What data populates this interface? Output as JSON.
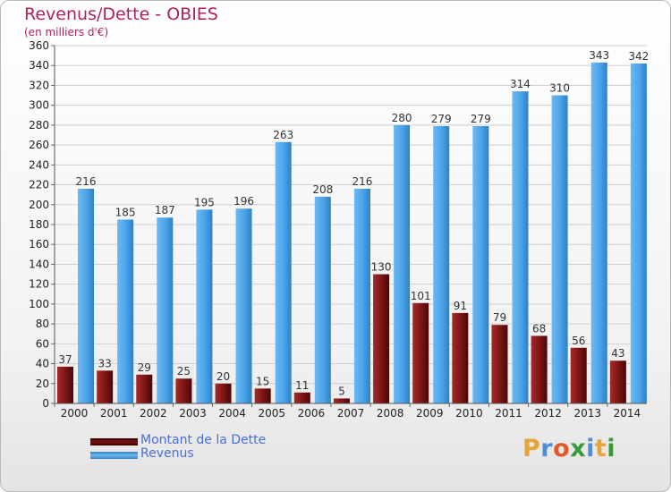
{
  "header": {
    "title": "Revenus/Dette - OBIES",
    "subtitle": "(en milliers d'€)"
  },
  "legend": {
    "items": [
      {
        "label": "Montant de la Dette",
        "color": "#7a1414"
      },
      {
        "label": "Revenus",
        "color": "#4aa3e8"
      }
    ]
  },
  "logo": {
    "letters": [
      "P",
      "r",
      "o",
      "x",
      "i",
      "t",
      "i"
    ],
    "colors": [
      "#e8a33a",
      "#4c8fd6",
      "#e05a2a",
      "#3a9a3a",
      "#4c8fd6",
      "#e8a33a",
      "#3a9a3a"
    ]
  },
  "chart_data": {
    "type": "bar",
    "categories": [
      "2000",
      "2001",
      "2002",
      "2003",
      "2004",
      "2005",
      "2006",
      "2007",
      "2008",
      "2009",
      "2010",
      "2011",
      "2012",
      "2013",
      "2014"
    ],
    "series": [
      {
        "name": "Montant de la Dette",
        "color": "#7a1414",
        "values": [
          37,
          33,
          29,
          25,
          20,
          15,
          11,
          5,
          130,
          101,
          91,
          79,
          68,
          56,
          43
        ]
      },
      {
        "name": "Revenus",
        "color": "#4aa3e8",
        "values": [
          216,
          185,
          187,
          195,
          196,
          263,
          208,
          216,
          280,
          279,
          279,
          314,
          310,
          343,
          342
        ]
      }
    ],
    "ylim": [
      0,
      360
    ],
    "yticks": [
      0,
      20,
      40,
      60,
      80,
      100,
      120,
      140,
      160,
      180,
      200,
      220,
      240,
      260,
      280,
      300,
      320,
      340,
      360
    ],
    "grid": true,
    "legend_position": "bottom-left"
  }
}
